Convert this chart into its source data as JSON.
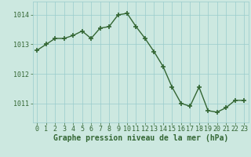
{
  "x": [
    0,
    1,
    2,
    3,
    4,
    5,
    6,
    7,
    8,
    9,
    10,
    11,
    12,
    13,
    14,
    15,
    16,
    17,
    18,
    19,
    20,
    21,
    22,
    23
  ],
  "y": [
    1012.8,
    1013.0,
    1013.2,
    1013.2,
    1013.3,
    1013.45,
    1013.2,
    1013.55,
    1013.6,
    1014.0,
    1014.05,
    1013.6,
    1013.2,
    1012.75,
    1012.25,
    1011.55,
    1011.0,
    1010.9,
    1011.55,
    1010.75,
    1010.7,
    1010.85,
    1011.1,
    1011.1
  ],
  "line_color": "#336633",
  "marker": "+",
  "marker_size": 4,
  "marker_linewidth": 1.2,
  "line_width": 1.0,
  "background_color": "#cce8e0",
  "grid_color": "#99cccc",
  "xlabel": "Graphe pression niveau de la mer (hPa)",
  "xlabel_color": "#336633",
  "xlabel_fontsize": 7,
  "tick_color": "#336633",
  "tick_fontsize": 6,
  "yticks": [
    1011,
    1012,
    1013,
    1014
  ],
  "ylim": [
    1010.35,
    1014.45
  ],
  "xlim": [
    -0.5,
    23.5
  ],
  "xticks": [
    0,
    1,
    2,
    3,
    4,
    5,
    6,
    7,
    8,
    9,
    10,
    11,
    12,
    13,
    14,
    15,
    16,
    17,
    18,
    19,
    20,
    21,
    22,
    23
  ]
}
